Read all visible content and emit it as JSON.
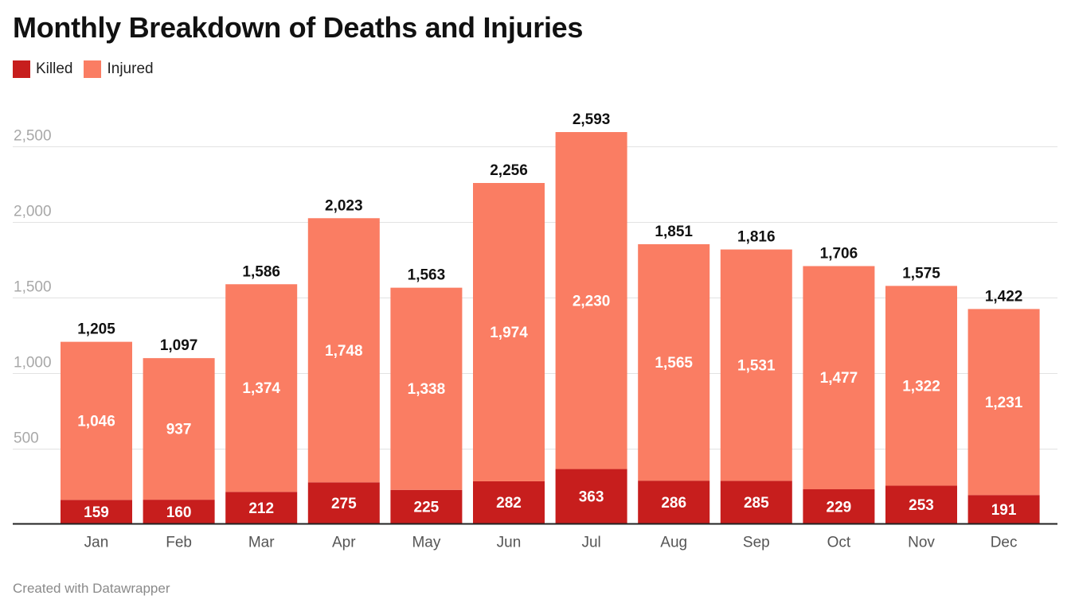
{
  "chart_data": {
    "type": "bar",
    "stacked": true,
    "title": "Monthly Breakdown of Deaths and Injuries",
    "categories": [
      "Jan",
      "Feb",
      "Mar",
      "Apr",
      "May",
      "Jun",
      "Jul",
      "Aug",
      "Sep",
      "Oct",
      "Nov",
      "Dec"
    ],
    "series": [
      {
        "name": "Killed",
        "color": "#c71e1d",
        "values": [
          159,
          160,
          212,
          275,
          225,
          282,
          363,
          286,
          285,
          229,
          253,
          191
        ],
        "labels": [
          "159",
          "160",
          "212",
          "275",
          "225",
          "282",
          "363",
          "286",
          "285",
          "229",
          "253",
          "191"
        ]
      },
      {
        "name": "Injured",
        "color": "#fa7d63",
        "values": [
          1046,
          937,
          1374,
          1748,
          1338,
          1974,
          2230,
          1565,
          1531,
          1477,
          1322,
          1231
        ],
        "labels": [
          "1,046",
          "937",
          "1,374",
          "1,748",
          "1,338",
          "1,974",
          "2,230",
          "1,565",
          "1,531",
          "1,477",
          "1,322",
          "1,231"
        ]
      }
    ],
    "totals": [
      1205,
      1097,
      1586,
      2023,
      1563,
      2256,
      2593,
      1851,
      1816,
      1706,
      1575,
      1422
    ],
    "total_labels": [
      "1,205",
      "1,097",
      "1,586",
      "2,023",
      "1,563",
      "2,256",
      "2,593",
      "1,851",
      "1,816",
      "1,706",
      "1,575",
      "1,422"
    ],
    "yticks": [
      500,
      1000,
      1500,
      2000,
      2500
    ],
    "ytick_labels": [
      "500",
      "1,000",
      "1,500",
      "2,000",
      "2,500"
    ],
    "ylim": [
      0,
      2593
    ],
    "xlabel": "",
    "ylabel": "",
    "grid": true,
    "legend_position": "top-left"
  },
  "footer": {
    "credit": "Created with Datawrapper"
  }
}
